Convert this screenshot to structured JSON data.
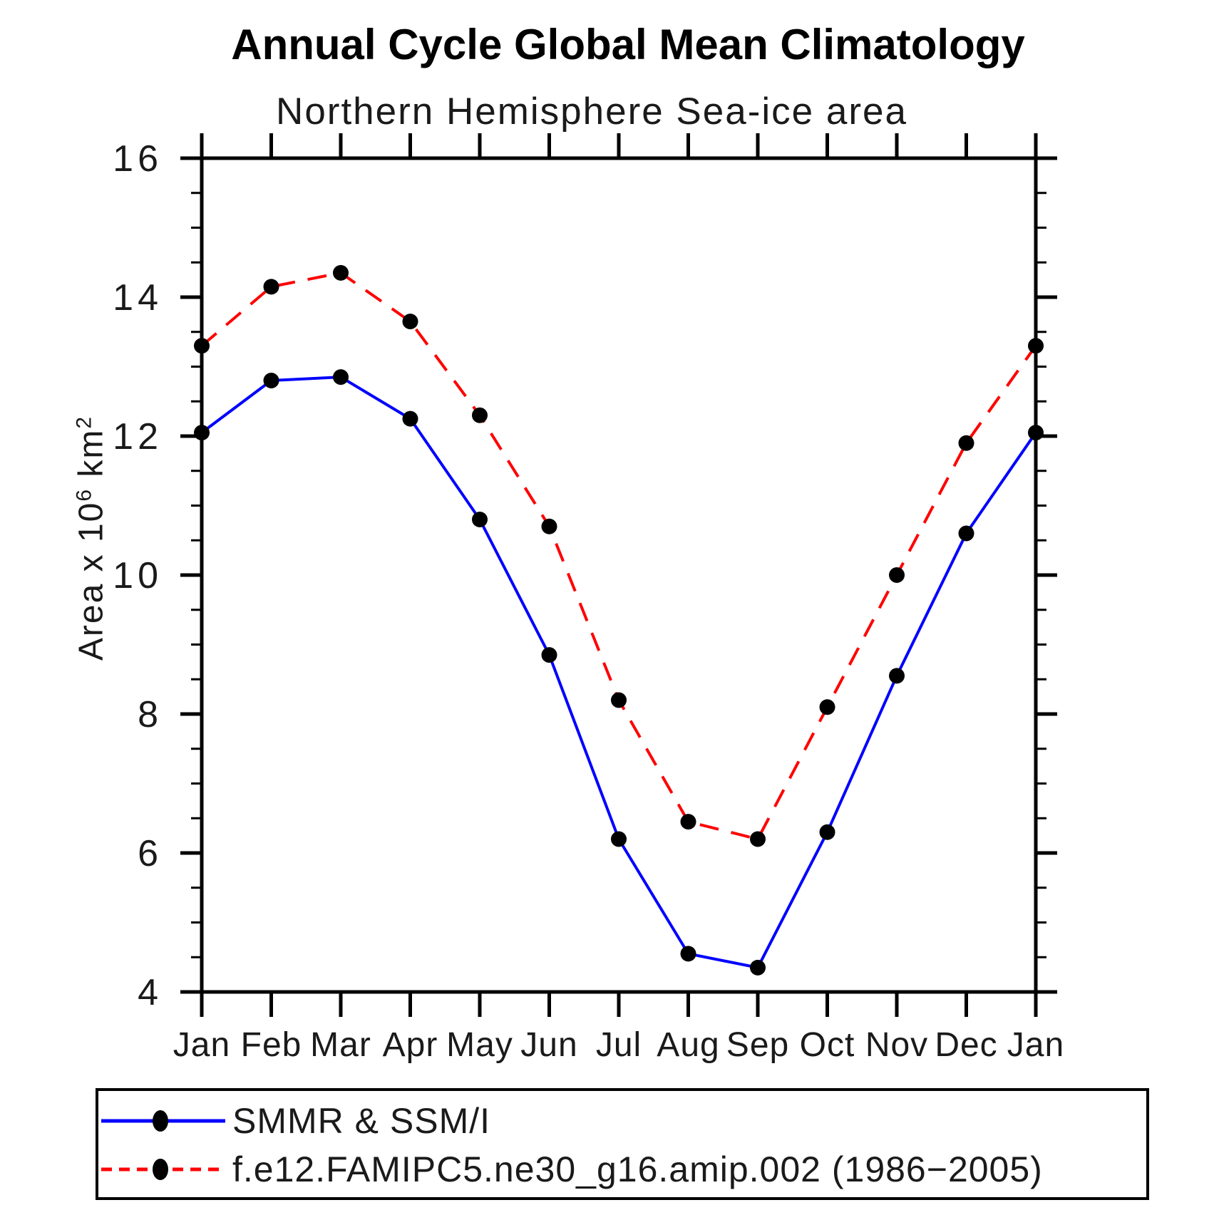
{
  "title": "Annual Cycle Global Mean Climatology",
  "subtitle": "Northern Hemisphere Sea-ice area",
  "y_axis": {
    "label_prefix": "Area x 10",
    "label_sup1": "6",
    "label_unit": " km",
    "label_sup2": "2",
    "tick_labels": [
      "4",
      "6",
      "8",
      "10",
      "12",
      "14",
      "16"
    ]
  },
  "chart_data": {
    "type": "line",
    "title": "Annual Cycle Global Mean Climatology",
    "subtitle": "Northern Hemisphere Sea-ice area",
    "ylabel": "Area x 10^6 km^2",
    "categories": [
      "Jan",
      "Feb",
      "Mar",
      "Apr",
      "May",
      "Jun",
      "Jul",
      "Aug",
      "Sep",
      "Oct",
      "Nov",
      "Dec",
      "Jan"
    ],
    "series": [
      {
        "name": "SMMR & SSM/I",
        "color": "#0000ff",
        "line_style": "solid",
        "marker": "filled-circle",
        "marker_color": "#000000",
        "values": [
          12.05,
          12.8,
          12.85,
          12.25,
          10.8,
          8.85,
          6.2,
          4.55,
          4.35,
          6.3,
          8.55,
          10.6,
          12.05
        ]
      },
      {
        "name": "f.e12.FAMIPC5.ne30_g16.amip.002 (1986−2005)",
        "color": "#ff0000",
        "line_style": "dashed",
        "marker": "filled-circle",
        "marker_color": "#000000",
        "values": [
          13.3,
          14.15,
          14.35,
          13.65,
          12.3,
          10.7,
          8.2,
          6.45,
          6.2,
          8.1,
          10.0,
          11.9,
          13.3
        ]
      }
    ],
    "ylim": [
      4,
      16
    ],
    "ytick_major": [
      4,
      6,
      8,
      10,
      12,
      14,
      16
    ],
    "ytick_minor_step": 0.5,
    "grid": false,
    "legend_position": "bottom-left-box"
  }
}
